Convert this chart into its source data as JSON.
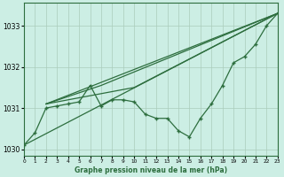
{
  "background_color": "#cceee4",
  "grid_color": "#aaccbb",
  "line_color": "#2d6e3e",
  "ylabel_ticks": [
    1030,
    1031,
    1032,
    1033
  ],
  "xlim": [
    0,
    23
  ],
  "ylim": [
    1029.85,
    1033.55
  ],
  "xlabel": "Graphe pression niveau de la mer (hPa)",
  "hours": [
    0,
    1,
    2,
    3,
    4,
    5,
    6,
    7,
    8,
    9,
    10,
    11,
    12,
    13,
    14,
    15,
    16,
    17,
    18,
    19,
    20,
    21,
    22,
    23
  ],
  "main_line": [
    1030.1,
    1030.4,
    1031.0,
    1031.05,
    1031.1,
    1031.15,
    1031.55,
    1031.05,
    1031.2,
    1031.2,
    1031.15,
    1030.85,
    1030.75,
    1030.75,
    1030.45,
    1030.3,
    1030.75,
    1031.1,
    1031.55,
    1032.1,
    1032.25,
    1032.55,
    1033.0,
    1033.3
  ],
  "trend_line1_x": [
    0,
    23
  ],
  "trend_line1_y": [
    1030.1,
    1033.3
  ],
  "trend_line2_x": [
    2,
    23
  ],
  "trend_line2_y": [
    1031.1,
    1033.3
  ],
  "trend_line3_x": [
    2,
    7,
    23
  ],
  "trend_line3_y": [
    1031.1,
    1031.55,
    1033.3
  ],
  "trend_line4_x": [
    2,
    10,
    23
  ],
  "trend_line4_y": [
    1031.1,
    1031.5,
    1033.3
  ]
}
